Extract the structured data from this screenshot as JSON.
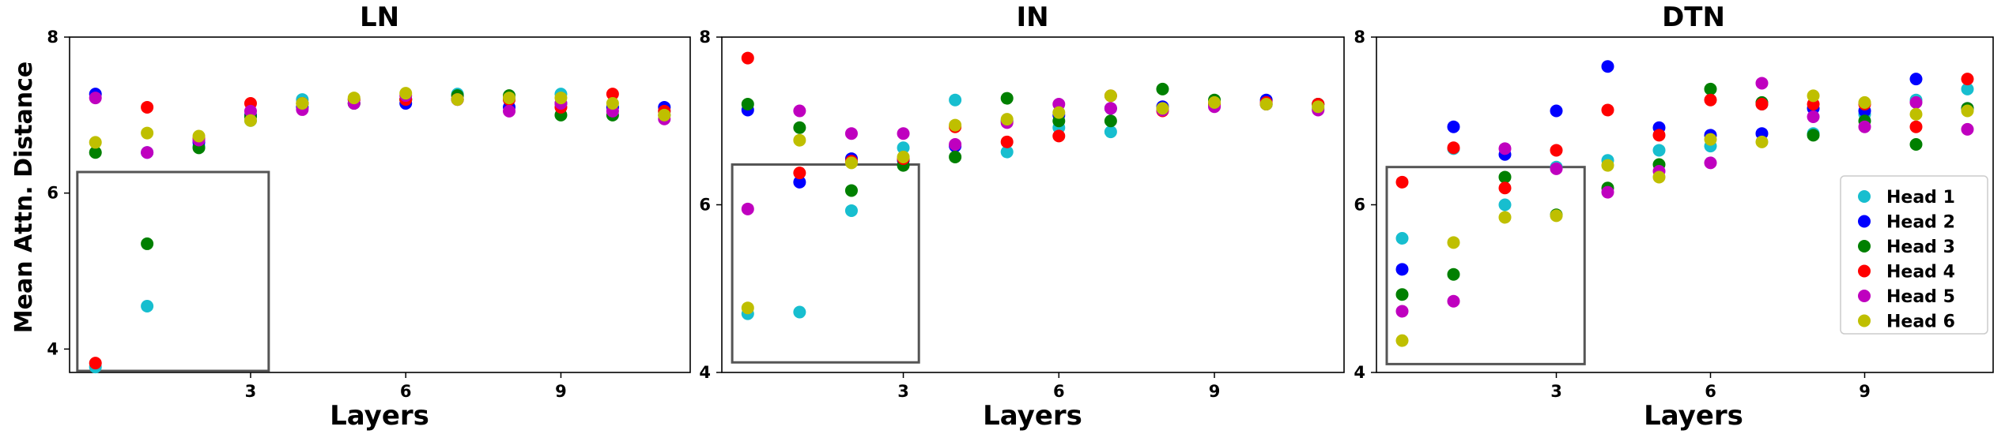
{
  "figure": {
    "ylabel": "Mean Attn. Distance"
  },
  "legend": {
    "items": [
      {
        "name": "Head 1",
        "color": "#17becf"
      },
      {
        "name": "Head 2",
        "color": "#0000ff"
      },
      {
        "name": "Head 3",
        "color": "#008000"
      },
      {
        "name": "Head 4",
        "color": "#ff0000"
      },
      {
        "name": "Head 5",
        "color": "#bf00bf"
      },
      {
        "name": "Head 6",
        "color": "#bfbf00"
      }
    ]
  },
  "chart_data": [
    {
      "type": "scatter",
      "title": "LN",
      "xlabel": "Layers",
      "ylabel": "Mean Attn. Distance",
      "x": [
        0,
        1,
        2,
        3,
        4,
        5,
        6,
        7,
        8,
        9,
        10,
        11
      ],
      "xticks": [
        3,
        6,
        9
      ],
      "ylim": [
        3.7,
        8
      ],
      "yticks": [
        4,
        6,
        8
      ],
      "grid": false,
      "inset_box": {
        "x": [
          -0.35,
          3.35
        ],
        "y": [
          3.72,
          6.27
        ]
      },
      "series": [
        {
          "name": "Head 1",
          "values": [
            3.77,
            4.55,
            6.6,
            6.93,
            7.2,
            7.2,
            7.2,
            7.27,
            7.2,
            7.27,
            7.1,
            7.05
          ]
        },
        {
          "name": "Head 2",
          "values": [
            7.27,
            6.52,
            6.65,
            7.0,
            7.1,
            7.15,
            7.15,
            7.2,
            7.1,
            7.15,
            7.1,
            7.1
          ]
        },
        {
          "name": "Head 3",
          "values": [
            6.52,
            5.35,
            6.58,
            6.98,
            7.15,
            7.15,
            7.2,
            7.25,
            7.25,
            7.0,
            7.0,
            7.0
          ]
        },
        {
          "name": "Head 4",
          "values": [
            3.82,
            7.1,
            6.7,
            7.15,
            7.15,
            7.2,
            7.2,
            7.2,
            7.2,
            7.1,
            7.27,
            7.05
          ]
        },
        {
          "name": "Head 5",
          "values": [
            7.22,
            6.52,
            6.68,
            7.05,
            7.07,
            7.15,
            7.25,
            7.2,
            7.05,
            7.15,
            7.05,
            6.95
          ]
        },
        {
          "name": "Head 6",
          "values": [
            6.65,
            6.77,
            6.73,
            6.93,
            7.15,
            7.22,
            7.28,
            7.2,
            7.22,
            7.22,
            7.15,
            7.0
          ]
        }
      ]
    },
    {
      "type": "scatter",
      "title": "IN",
      "xlabel": "Layers",
      "ylabel": "",
      "x": [
        0,
        1,
        2,
        3,
        4,
        5,
        6,
        7,
        8,
        9,
        10,
        11
      ],
      "xticks": [
        3,
        6,
        9
      ],
      "ylim": [
        4,
        8
      ],
      "yticks": [
        4,
        6,
        8
      ],
      "grid": false,
      "inset_box": {
        "x": [
          -0.3,
          3.3
        ],
        "y": [
          4.12,
          6.48
        ]
      },
      "series": [
        {
          "name": "Head 1",
          "values": [
            4.7,
            4.72,
            5.93,
            6.68,
            7.25,
            6.63,
            6.92,
            6.87,
            7.15,
            7.2,
            7.2,
            7.15
          ]
        },
        {
          "name": "Head 2",
          "values": [
            7.13,
            6.27,
            6.55,
            6.53,
            6.7,
            7.0,
            7.07,
            7.15,
            7.17,
            7.2,
            7.25,
            7.2
          ]
        },
        {
          "name": "Head 3",
          "values": [
            7.2,
            6.92,
            6.17,
            6.47,
            6.57,
            7.27,
            7.0,
            7.0,
            7.38,
            7.25,
            7.2,
            7.2
          ]
        },
        {
          "name": "Head 4",
          "values": [
            7.75,
            6.38,
            6.52,
            6.55,
            6.93,
            6.75,
            6.82,
            7.3,
            7.12,
            7.2,
            7.22,
            7.2
          ]
        },
        {
          "name": "Head 5",
          "values": [
            5.95,
            7.12,
            6.85,
            6.85,
            6.72,
            6.98,
            7.2,
            7.15,
            7.13,
            7.17,
            7.2,
            7.13
          ]
        },
        {
          "name": "Head 6",
          "values": [
            4.77,
            6.77,
            6.5,
            6.57,
            6.95,
            7.02,
            7.1,
            7.3,
            7.15,
            7.22,
            7.2,
            7.17
          ]
        }
      ]
    },
    {
      "type": "scatter",
      "title": "DTN",
      "xlabel": "Layers",
      "ylabel": "",
      "x": [
        0,
        1,
        2,
        3,
        4,
        5,
        6,
        7,
        8,
        9,
        10,
        11
      ],
      "xticks": [
        3,
        6,
        9
      ],
      "ylim": [
        4,
        8
      ],
      "yticks": [
        4,
        6,
        8
      ],
      "grid": false,
      "inset_box": {
        "x": [
          -0.3,
          3.55
        ],
        "y": [
          4.1,
          6.45
        ]
      },
      "legend": "right",
      "series": [
        {
          "name": "Head 1",
          "values": [
            5.6,
            6.67,
            6.0,
            6.45,
            6.53,
            6.65,
            6.7,
            7.2,
            6.85,
            7.08,
            7.25,
            7.38
          ]
        },
        {
          "name": "Head 2",
          "values": [
            5.23,
            6.93,
            6.6,
            7.12,
            7.65,
            6.92,
            6.83,
            6.85,
            7.15,
            7.12,
            7.5,
            7.15
          ]
        },
        {
          "name": "Head 3",
          "values": [
            4.93,
            5.17,
            6.33,
            5.88,
            6.2,
            6.48,
            7.38,
            7.22,
            6.83,
            7.0,
            6.72,
            7.15
          ]
        },
        {
          "name": "Head 4",
          "values": [
            6.27,
            6.68,
            6.2,
            6.65,
            7.13,
            6.83,
            7.25,
            7.2,
            7.2,
            7.2,
            6.93,
            7.5
          ]
        },
        {
          "name": "Head 5",
          "values": [
            4.73,
            4.85,
            6.67,
            6.43,
            6.15,
            6.4,
            6.5,
            7.45,
            7.05,
            6.93,
            7.22,
            6.9
          ]
        },
        {
          "name": "Head 6",
          "values": [
            4.38,
            5.55,
            5.85,
            5.87,
            6.47,
            6.33,
            6.78,
            6.75,
            7.3,
            7.22,
            7.08,
            7.12
          ]
        }
      ]
    }
  ]
}
